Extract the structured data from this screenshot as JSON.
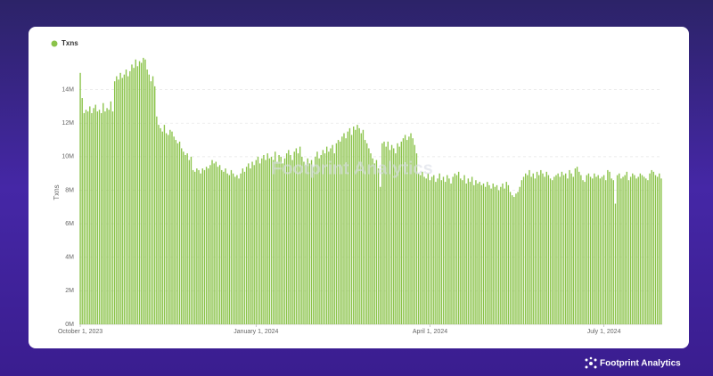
{
  "chart_data": {
    "type": "bar",
    "ylabel": "Txns",
    "watermark": "Footprint Analytics",
    "brand": "Footprint Analytics",
    "legend": "top-left",
    "grid": true,
    "ylim": [
      0,
      16000000
    ],
    "yticks": [
      {
        "value": 0,
        "label": "0M"
      },
      {
        "value": 2000000,
        "label": "2M"
      },
      {
        "value": 4000000,
        "label": "4M"
      },
      {
        "value": 6000000,
        "label": "6M"
      },
      {
        "value": 8000000,
        "label": "8M"
      },
      {
        "value": 10000000,
        "label": "10M"
      },
      {
        "value": 12000000,
        "label": "12M"
      },
      {
        "value": 14000000,
        "label": "14M"
      }
    ],
    "xticks": [
      {
        "value": "2023-10-01",
        "label": "October 1, 2023"
      },
      {
        "value": "2024-01-01",
        "label": "January 1, 2024"
      },
      {
        "value": "2024-04-01",
        "label": "April 1, 2024"
      },
      {
        "value": "2024-07-01",
        "label": "July 1, 2024"
      }
    ],
    "x": [
      "2023-10-01",
      "2023-10-02",
      "2023-10-03",
      "2023-10-04",
      "2023-10-05",
      "2023-10-06",
      "2023-10-07",
      "2023-10-08",
      "2023-10-09",
      "2023-10-10",
      "2023-10-11",
      "2023-10-12",
      "2023-10-13",
      "2023-10-14",
      "2023-10-15",
      "2023-10-16",
      "2023-10-17",
      "2023-10-18",
      "2023-10-19",
      "2023-10-20",
      "2023-10-21",
      "2023-10-22",
      "2023-10-23",
      "2023-10-24",
      "2023-10-25",
      "2023-10-26",
      "2023-10-27",
      "2023-10-28",
      "2023-10-29",
      "2023-10-30",
      "2023-10-31",
      "2023-11-01",
      "2023-11-02",
      "2023-11-03",
      "2023-11-04",
      "2023-11-05",
      "2023-11-06",
      "2023-11-07",
      "2023-11-08",
      "2023-11-09",
      "2023-11-10",
      "2023-11-11",
      "2023-11-12",
      "2023-11-13",
      "2023-11-14",
      "2023-11-15",
      "2023-11-16",
      "2023-11-17",
      "2023-11-18",
      "2023-11-19",
      "2023-11-20",
      "2023-11-21",
      "2023-11-22",
      "2023-11-23",
      "2023-11-24",
      "2023-11-25",
      "2023-11-26",
      "2023-11-27",
      "2023-11-28",
      "2023-11-29",
      "2023-11-30",
      "2023-12-01",
      "2023-12-02",
      "2023-12-03",
      "2023-12-04",
      "2023-12-05",
      "2023-12-06",
      "2023-12-07",
      "2023-12-08",
      "2023-12-09",
      "2023-12-10",
      "2023-12-11",
      "2023-12-12",
      "2023-12-13",
      "2023-12-14",
      "2023-12-15",
      "2023-12-16",
      "2023-12-17",
      "2023-12-18",
      "2023-12-19",
      "2023-12-20",
      "2023-12-21",
      "2023-12-22",
      "2023-12-23",
      "2023-12-24",
      "2023-12-25",
      "2023-12-26",
      "2023-12-27",
      "2023-12-28",
      "2023-12-29",
      "2023-12-30",
      "2023-12-31",
      "2024-01-01",
      "2024-01-02",
      "2024-01-03",
      "2024-01-04",
      "2024-01-05",
      "2024-01-06",
      "2024-01-07",
      "2024-01-08",
      "2024-01-09",
      "2024-01-10",
      "2024-01-11",
      "2024-01-12",
      "2024-01-13",
      "2024-01-14",
      "2024-01-15",
      "2024-01-16",
      "2024-01-17",
      "2024-01-18",
      "2024-01-19",
      "2024-01-20",
      "2024-01-21",
      "2024-01-22",
      "2024-01-23",
      "2024-01-24",
      "2024-01-25",
      "2024-01-26",
      "2024-01-27",
      "2024-01-28",
      "2024-01-29",
      "2024-01-30",
      "2024-01-31",
      "2024-02-01",
      "2024-02-02",
      "2024-02-03",
      "2024-02-04",
      "2024-02-05",
      "2024-02-06",
      "2024-02-07",
      "2024-02-08",
      "2024-02-09",
      "2024-02-10",
      "2024-02-11",
      "2024-02-12",
      "2024-02-13",
      "2024-02-14",
      "2024-02-15",
      "2024-02-16",
      "2024-02-17",
      "2024-02-18",
      "2024-02-19",
      "2024-02-20",
      "2024-02-21",
      "2024-02-22",
      "2024-02-23",
      "2024-02-24",
      "2024-02-25",
      "2024-02-26",
      "2024-02-27",
      "2024-02-28",
      "2024-02-29",
      "2024-03-01",
      "2024-03-02",
      "2024-03-03",
      "2024-03-04",
      "2024-03-05",
      "2024-03-06",
      "2024-03-07",
      "2024-03-08",
      "2024-03-09",
      "2024-03-10",
      "2024-03-11",
      "2024-03-12",
      "2024-03-13",
      "2024-03-14",
      "2024-03-15",
      "2024-03-16",
      "2024-03-17",
      "2024-03-18",
      "2024-03-19",
      "2024-03-20",
      "2024-03-21",
      "2024-03-22",
      "2024-03-23",
      "2024-03-24",
      "2024-03-25",
      "2024-03-26",
      "2024-03-27",
      "2024-03-28",
      "2024-03-29",
      "2024-03-30",
      "2024-03-31",
      "2024-04-01",
      "2024-04-02",
      "2024-04-03",
      "2024-04-04",
      "2024-04-05",
      "2024-04-06",
      "2024-04-07",
      "2024-04-08",
      "2024-04-09",
      "2024-04-10",
      "2024-04-11",
      "2024-04-12",
      "2024-04-13",
      "2024-04-14",
      "2024-04-15",
      "2024-04-16",
      "2024-04-17",
      "2024-04-18",
      "2024-04-19",
      "2024-04-20",
      "2024-04-21",
      "2024-04-22",
      "2024-04-23",
      "2024-04-24",
      "2024-04-25",
      "2024-04-26",
      "2024-04-27",
      "2024-04-28",
      "2024-04-29",
      "2024-04-30",
      "2024-05-01",
      "2024-05-02",
      "2024-05-03",
      "2024-05-04",
      "2024-05-05",
      "2024-05-06",
      "2024-05-07",
      "2024-05-08",
      "2024-05-09",
      "2024-05-10",
      "2024-05-11",
      "2024-05-12",
      "2024-05-13",
      "2024-05-14",
      "2024-05-15",
      "2024-05-16",
      "2024-05-17",
      "2024-05-18",
      "2024-05-19",
      "2024-05-20",
      "2024-05-21",
      "2024-05-22",
      "2024-05-23",
      "2024-05-24",
      "2024-05-25",
      "2024-05-26",
      "2024-05-27",
      "2024-05-28",
      "2024-05-29",
      "2024-05-30",
      "2024-05-31",
      "2024-06-01",
      "2024-06-02",
      "2024-06-03",
      "2024-06-04",
      "2024-06-05",
      "2024-06-06",
      "2024-06-07",
      "2024-06-08",
      "2024-06-09",
      "2024-06-10",
      "2024-06-11",
      "2024-06-12",
      "2024-06-13",
      "2024-06-14",
      "2024-06-15",
      "2024-06-16",
      "2024-06-17",
      "2024-06-18",
      "2024-06-19",
      "2024-06-20",
      "2024-06-21",
      "2024-06-22",
      "2024-06-23",
      "2024-06-24",
      "2024-06-25",
      "2024-06-26",
      "2024-06-27",
      "2024-06-28",
      "2024-06-29",
      "2024-06-30",
      "2024-07-01",
      "2024-07-02",
      "2024-07-03",
      "2024-07-04",
      "2024-07-05",
      "2024-07-06",
      "2024-07-07",
      "2024-07-08",
      "2024-07-09",
      "2024-07-10",
      "2024-07-11",
      "2024-07-12",
      "2024-07-13",
      "2024-07-14",
      "2024-07-15",
      "2024-07-16",
      "2024-07-17",
      "2024-07-18",
      "2024-07-19",
      "2024-07-20",
      "2024-07-21",
      "2024-07-22",
      "2024-07-23",
      "2024-07-24",
      "2024-07-25",
      "2024-07-26",
      "2024-07-27",
      "2024-07-28",
      "2024-07-29",
      "2024-07-30",
      "2024-07-31"
    ],
    "series": [
      {
        "name": "Txns",
        "color": "#8bc34a",
        "values": [
          15000000,
          13500000,
          12600000,
          12800000,
          12700000,
          13000000,
          12600000,
          12900000,
          13100000,
          12700000,
          12800000,
          12600000,
          13200000,
          12700000,
          12900000,
          12800000,
          13300000,
          12700000,
          14500000,
          14800000,
          14600000,
          15000000,
          14700000,
          14900000,
          15200000,
          14800000,
          15100000,
          15500000,
          15300000,
          15800000,
          15400000,
          15700000,
          15600000,
          15900000,
          15800000,
          15200000,
          14900000,
          14500000,
          14800000,
          14200000,
          12400000,
          11900000,
          11700000,
          11500000,
          11900000,
          11400000,
          11300000,
          11600000,
          11500000,
          11200000,
          11000000,
          10800000,
          10900000,
          10500000,
          10300000,
          10100000,
          10200000,
          9800000,
          10000000,
          9200000,
          9100000,
          9300000,
          9200000,
          9000000,
          9300000,
          9200000,
          9400000,
          9300000,
          9500000,
          9800000,
          9600000,
          9700000,
          9400000,
          9500000,
          9200000,
          9100000,
          9300000,
          9000000,
          8900000,
          9200000,
          9000000,
          8800000,
          8900000,
          8700000,
          9000000,
          9300000,
          9100000,
          9400000,
          9600000,
          9300000,
          9700000,
          9500000,
          9800000,
          10000000,
          9600000,
          9900000,
          10100000,
          9800000,
          10200000,
          9900000,
          10000000,
          9800000,
          10300000,
          9700000,
          10100000,
          10000000,
          9600000,
          9900000,
          10200000,
          10400000,
          10100000,
          9800000,
          10300000,
          10500000,
          10200000,
          10600000,
          10000000,
          9700000,
          9500000,
          9900000,
          9600000,
          9800000,
          9400000,
          10000000,
          10300000,
          9900000,
          10100000,
          10400000,
          10200000,
          10600000,
          10300000,
          10500000,
          10700000,
          10200000,
          10800000,
          11000000,
          10900000,
          11200000,
          11400000,
          11100000,
          11500000,
          11700000,
          11300000,
          11800000,
          11600000,
          11900000,
          11700000,
          11400000,
          11600000,
          11000000,
          10800000,
          10500000,
          10200000,
          9900000,
          9600000,
          9800000,
          9300000,
          8200000,
          10800000,
          10900000,
          10600000,
          10900000,
          10400000,
          10700000,
          10500000,
          10200000,
          10800000,
          10600000,
          10900000,
          11100000,
          11300000,
          11000000,
          11200000,
          11400000,
          11100000,
          10700000,
          10200000,
          9000000,
          8900000,
          9100000,
          8800000,
          8700000,
          9000000,
          8600000,
          8800000,
          8900000,
          8500000,
          8700000,
          9000000,
          8600000,
          8800000,
          8500000,
          8900000,
          8700000,
          8400000,
          8800000,
          9000000,
          8900000,
          9100000,
          8700000,
          8600000,
          8900000,
          8400000,
          8700000,
          8500000,
          8800000,
          8300000,
          8600000,
          8400000,
          8500000,
          8300000,
          8400000,
          8200000,
          8500000,
          8300000,
          8100000,
          8400000,
          8200000,
          8300000,
          8000000,
          8200000,
          8400000,
          8100000,
          8500000,
          8300000,
          7900000,
          7700000,
          7600000,
          7800000,
          7900000,
          8200000,
          8600000,
          8800000,
          9000000,
          8900000,
          9200000,
          8800000,
          9000000,
          8700000,
          9100000,
          8900000,
          9200000,
          9000000,
          8800000,
          9100000,
          8900000,
          8700000,
          8600000,
          8800000,
          8900000,
          9000000,
          8800000,
          9100000,
          8900000,
          9000000,
          8700000,
          9200000,
          9000000,
          8800000,
          9300000,
          9400000,
          9100000,
          8900000,
          8600000,
          8500000,
          8900000,
          9000000,
          8800000,
          8700000,
          9000000,
          8800000,
          8900000,
          8700000,
          8800000,
          8900000,
          8600000,
          9200000,
          9100000,
          8700000,
          8600000,
          7200000,
          8900000,
          9000000,
          8700000,
          8800000,
          8900000,
          9100000,
          8600000,
          8800000,
          9000000,
          8900000,
          8700000,
          8800000,
          9000000,
          8900000,
          8800000,
          8700000,
          8600000,
          9000000,
          9200000,
          9100000,
          8900000,
          8800000,
          9000000,
          8700000
        ]
      }
    ]
  }
}
